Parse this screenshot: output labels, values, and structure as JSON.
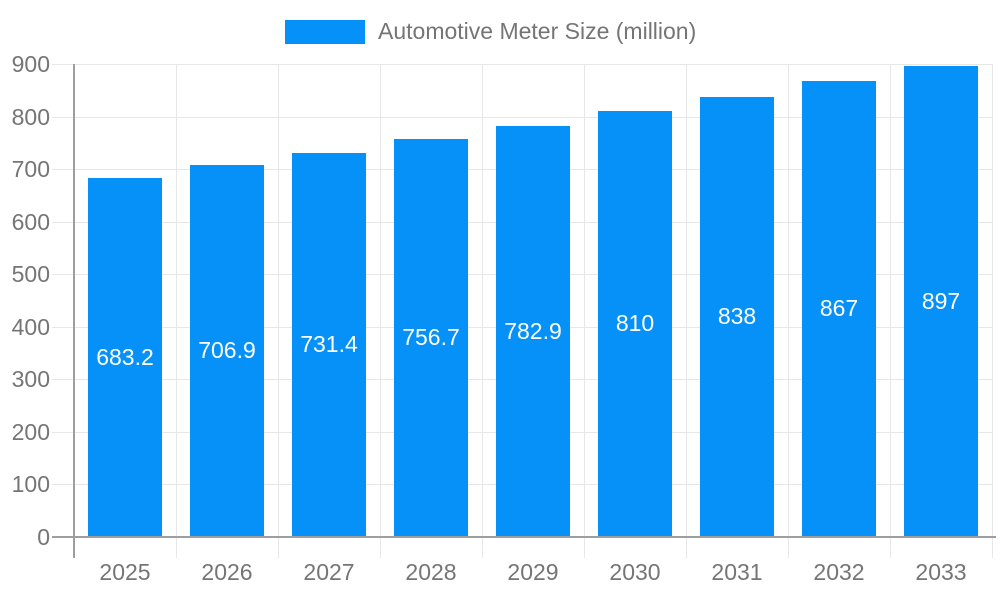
{
  "legend": {
    "label": "Automotive Meter Size (million)"
  },
  "chart_data": {
    "type": "bar",
    "title": "Automotive Meter Size (million)",
    "categories": [
      "2025",
      "2026",
      "2027",
      "2028",
      "2029",
      "2030",
      "2031",
      "2032",
      "2033"
    ],
    "series": [
      {
        "name": "Automotive Meter Size (million)",
        "values": [
          683.2,
          706.9,
          731.4,
          756.7,
          782.9,
          810,
          838,
          867,
          897
        ],
        "value_labels": [
          "683.2",
          "706.9",
          "731.4",
          "756.7",
          "782.9",
          "810",
          "838",
          "867",
          "897"
        ]
      }
    ],
    "xlabel": "",
    "ylabel": "",
    "ylim": [
      0,
      900
    ],
    "yticks": [
      0,
      100,
      200,
      300,
      400,
      500,
      600,
      700,
      800,
      900
    ],
    "grid": true,
    "legend_position": "top",
    "value_label_position": "inside-center",
    "colors": {
      "bar": "#0591f8",
      "bar_value_text": "#ffffff",
      "grid": "#e7e7e7",
      "axis": "#9e9e9e",
      "tick_text": "#757575",
      "legend_text": "#757575",
      "background": "#ffffff"
    }
  }
}
